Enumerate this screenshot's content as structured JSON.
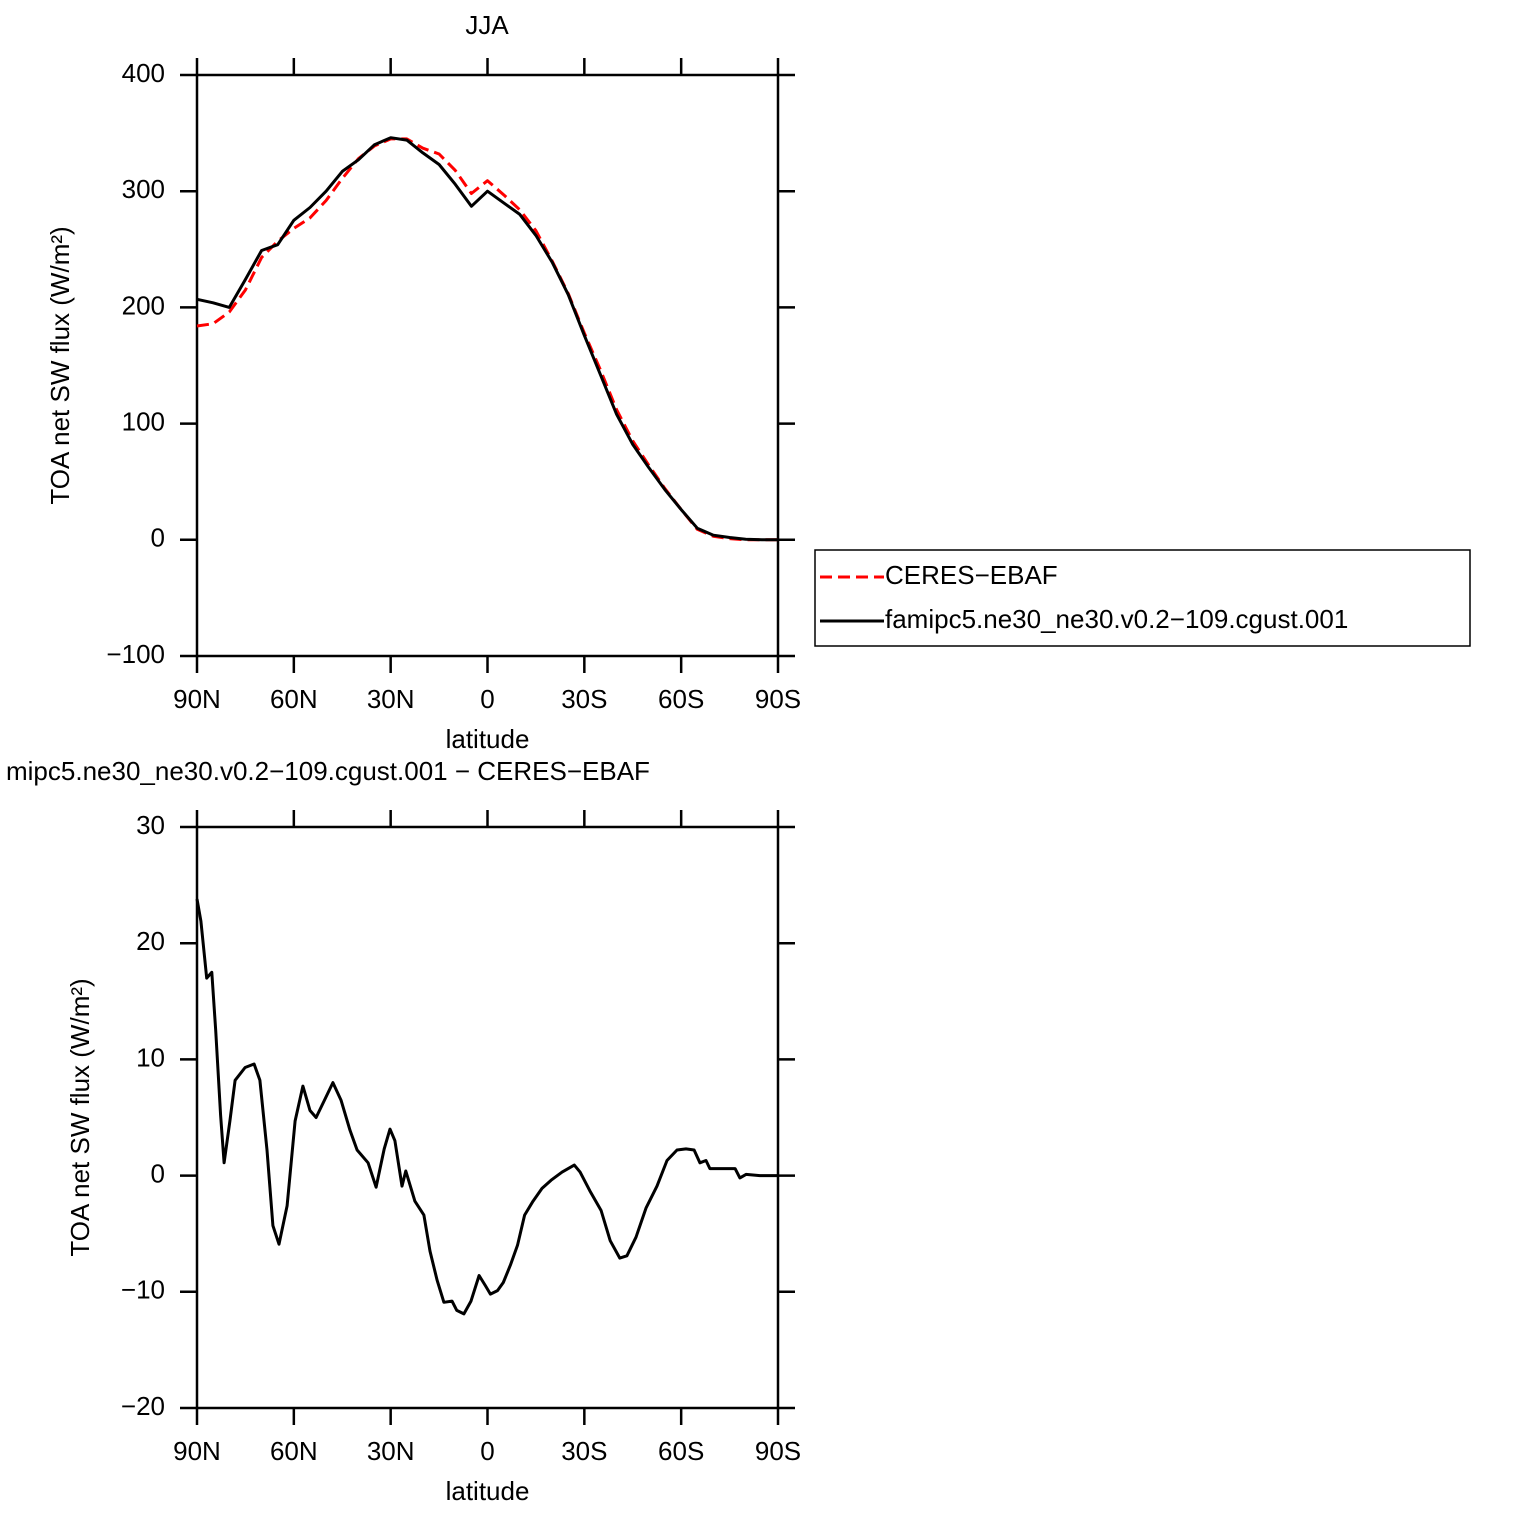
{
  "chart_data": [
    {
      "type": "line",
      "title": "JJA",
      "xlabel": "latitude",
      "ylabel": "TOA net SW flux (W/m²)",
      "x": [
        90,
        85,
        80,
        75,
        70,
        65,
        60,
        55,
        50,
        45,
        40,
        35,
        30,
        25,
        20,
        15,
        10,
        5,
        0,
        -5,
        -10,
        -15,
        -20,
        -25,
        -30,
        -35,
        -40,
        -45,
        -50,
        -55,
        -60,
        -65,
        -70,
        -75,
        -80,
        -85,
        -90
      ],
      "xlim": [
        90,
        -90
      ],
      "xticks": [
        {
          "value": 90,
          "label": "90N"
        },
        {
          "value": 60,
          "label": "60N"
        },
        {
          "value": 30,
          "label": "30N"
        },
        0,
        {
          "value": -30,
          "label": "30S"
        },
        {
          "value": -60,
          "label": "60S"
        },
        {
          "value": -90,
          "label": "90S"
        }
      ],
      "ylim": [
        -100,
        400
      ],
      "yticks": [
        {
          "value": -100,
          "label": "−100"
        },
        0,
        100,
        200,
        300,
        400
      ],
      "legend": "right",
      "series": [
        {
          "name": "CERES−EBAF",
          "color": "#ff0000",
          "style": "dashed",
          "values": [
            184,
            186,
            196,
            215,
            243,
            257,
            268,
            277,
            292,
            311,
            328,
            339,
            345,
            345,
            337,
            332,
            318,
            298,
            309,
            297,
            284,
            266,
            240,
            212,
            178,
            146,
            112,
            85,
            64,
            44,
            26,
            9,
            3,
            1,
            0,
            0,
            0
          ]
        },
        {
          "name": "famipc5.ne30_ne30.v0.2−109.cgust.001",
          "color": "#000000",
          "style": "solid",
          "values": [
            207,
            204,
            200,
            224,
            249,
            254,
            275,
            286,
            300,
            317,
            327,
            340,
            346,
            344,
            333,
            323,
            306,
            287,
            300,
            290,
            280,
            262,
            239,
            211,
            176,
            142,
            108,
            82,
            62,
            43,
            26,
            10,
            4,
            2,
            0.5,
            0,
            0
          ]
        }
      ]
    },
    {
      "type": "line",
      "title": "mipc5.ne30_ne30.v0.2−109.cgust.001 − CERES−EBAF",
      "xlabel": "latitude",
      "ylabel": "TOA net SW flux (W/m²)",
      "x": [
        90,
        88.8,
        87,
        85.4,
        84.2,
        82.7,
        81.6,
        79.8,
        78.2,
        75.1,
        72.3,
        70.5,
        68.3,
        66.5,
        64.6,
        62.1,
        59.6,
        57.2,
        55,
        53.1,
        50.3,
        47.9,
        45.4,
        42.6,
        40.4,
        37,
        34.5,
        32,
        30.2,
        28.7,
        26.5,
        25.3,
        22.5,
        19.7,
        17.8,
        15.6,
        13.5,
        11,
        9.5,
        7.3,
        5.1,
        2.6,
        0.6,
        -0.9,
        -3.1,
        -4.9,
        -7.1,
        -9.3,
        -11.5,
        -14.1,
        -16.9,
        -19.7,
        -23.1,
        -26.9,
        -28.7,
        -31.7,
        -35.2,
        -38,
        -41,
        -43.2,
        -46,
        -49.1,
        -52.5,
        -55.6,
        -58.7,
        -61.5,
        -64,
        -65.8,
        -67.7,
        -68.9,
        -72,
        -76.7,
        -78.2,
        -80.1,
        -84.4,
        -90
      ],
      "values": [
        23.8,
        21.9,
        17,
        17.5,
        12.5,
        5.2,
        1.1,
        4.7,
        8.2,
        9.3,
        9.6,
        8.2,
        2.2,
        -4.3,
        -5.9,
        -2.6,
        4.7,
        7.7,
        5.6,
        5.0,
        6.6,
        8,
        6.5,
        3.9,
        2.2,
        1.1,
        -1,
        2.3,
        4.0,
        3.0,
        -0.9,
        0.4,
        -2.2,
        -3.4,
        -6.5,
        -9.0,
        -10.9,
        -10.8,
        -11.6,
        -11.9,
        -10.8,
        -8.6,
        -9.5,
        -10.2,
        -9.9,
        -9.2,
        -7.7,
        -6,
        -3.4,
        -2.2,
        -1.1,
        -0.4,
        0.3,
        0.9,
        0.3,
        -1.3,
        -3,
        -5.6,
        -7.1,
        -6.9,
        -5.3,
        -2.8,
        -0.9,
        1.3,
        2.2,
        2.3,
        2.2,
        1.1,
        1.3,
        0.6,
        0.6,
        0.6,
        -0.2,
        0.1,
        0,
        0
      ],
      "color": "#000000",
      "xlim": [
        90,
        -90
      ],
      "xticks": [
        {
          "value": 90,
          "label": "90N"
        },
        {
          "value": 60,
          "label": "60N"
        },
        {
          "value": 30,
          "label": "30N"
        },
        0,
        {
          "value": -30,
          "label": "30S"
        },
        {
          "value": -60,
          "label": "60S"
        },
        {
          "value": -90,
          "label": "90S"
        }
      ],
      "ylim": [
        -20,
        30
      ],
      "yticks": [
        {
          "value": -20,
          "label": "−20"
        },
        {
          "value": -10,
          "label": "−10"
        },
        0,
        10,
        20,
        30
      ]
    }
  ]
}
